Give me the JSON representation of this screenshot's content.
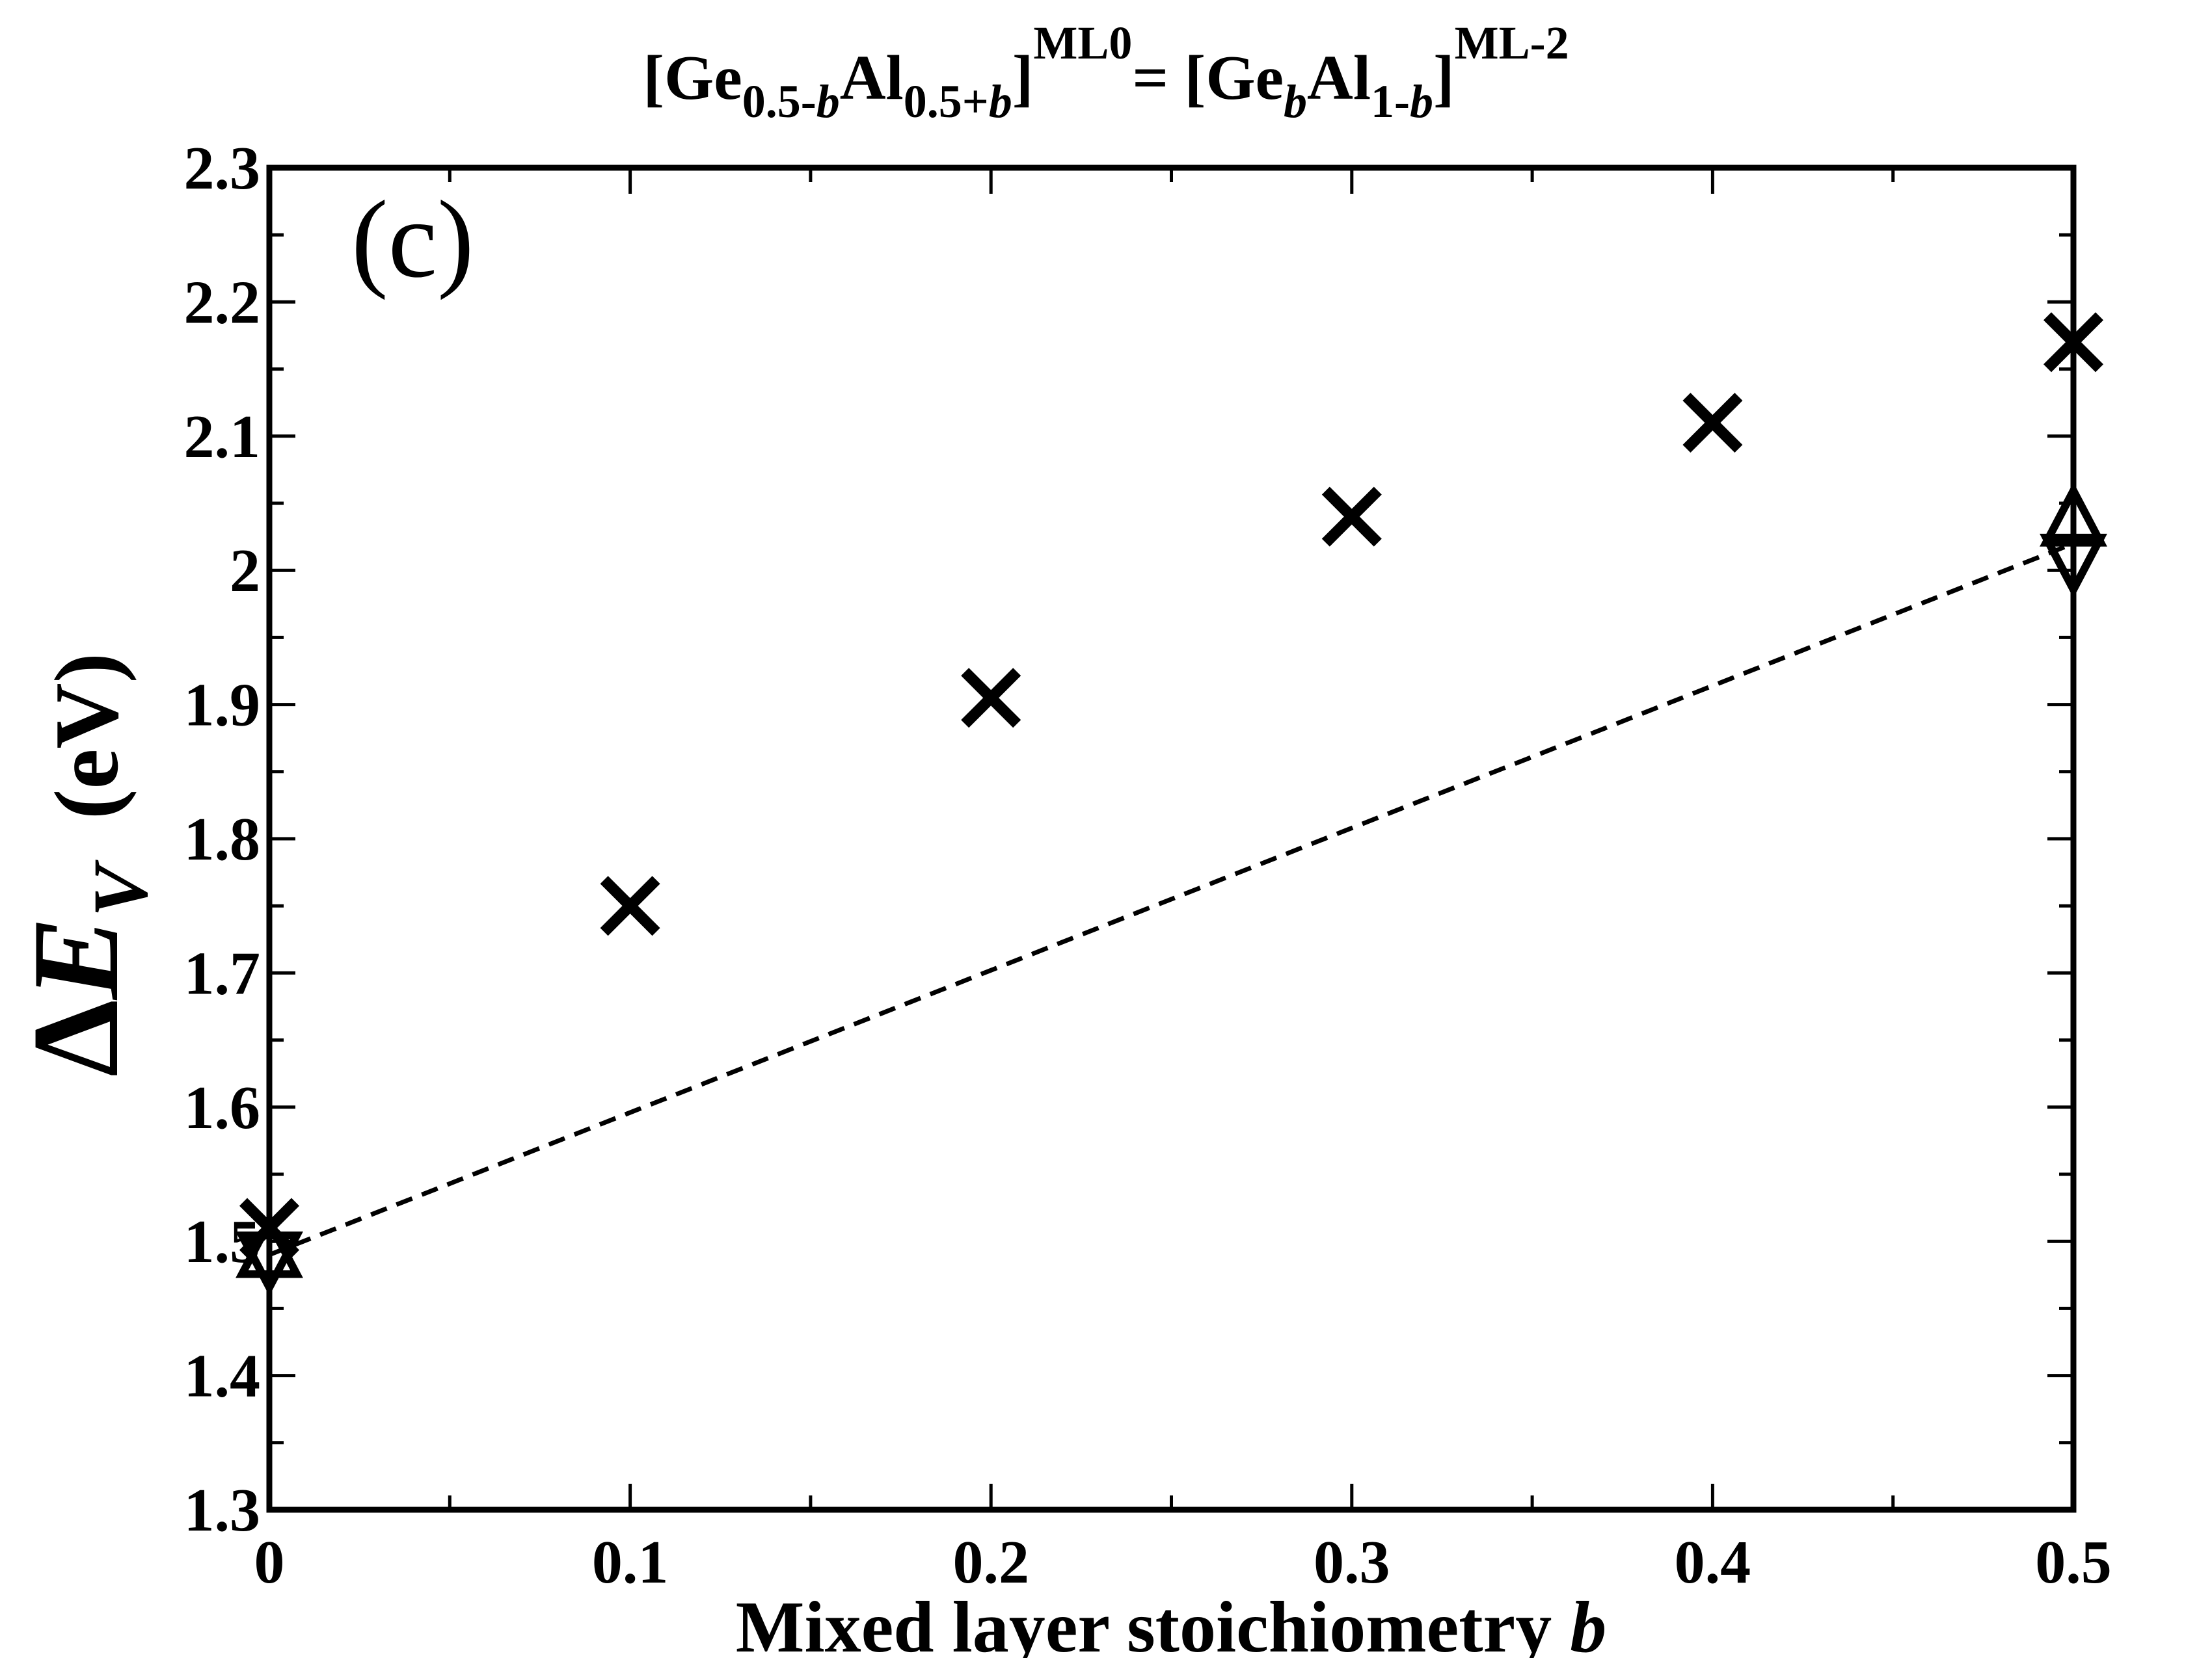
{
  "chart_data": {
    "type": "scatter",
    "title": {
      "parts": [
        {
          "text": "[Ge",
          "style": "normal"
        },
        {
          "text": "0.5-",
          "style": "sub"
        },
        {
          "text": "b",
          "style": "sub-italic"
        },
        {
          "text": "Al",
          "style": "normal"
        },
        {
          "text": "0.5+",
          "style": "sub"
        },
        {
          "text": "b",
          "style": "sub-italic"
        },
        {
          "text": "]",
          "style": "normal"
        },
        {
          "text": "ML0",
          "style": "sup"
        },
        {
          "text": "= [Ge",
          "style": "normal"
        },
        {
          "text": "b",
          "style": "sub-italic"
        },
        {
          "text": "Al",
          "style": "normal"
        },
        {
          "text": "1-",
          "style": "sub"
        },
        {
          "text": "b",
          "style": "sub-italic"
        },
        {
          "text": "]",
          "style": "normal"
        },
        {
          "text": "ML-2",
          "style": "sup"
        }
      ]
    },
    "panel_label": "(c)",
    "xlabel": {
      "text": "Mixed layer stoichiometry ",
      "var": "b"
    },
    "ylabel": {
      "delta": "Δ",
      "symbol": "E",
      "subscript": "V",
      "unit": "(eV)"
    },
    "xlim": [
      0,
      0.5
    ],
    "ylim": [
      1.3,
      2.3
    ],
    "x_ticks": [
      {
        "value": 0,
        "label": "0"
      },
      {
        "value": 0.1,
        "label": "0.1"
      },
      {
        "value": 0.2,
        "label": "0.2"
      },
      {
        "value": 0.3,
        "label": "0.3"
      },
      {
        "value": 0.4,
        "label": "0.4"
      },
      {
        "value": 0.5,
        "label": "0.5"
      }
    ],
    "x_minor_ticks": [
      0.05,
      0.15,
      0.25,
      0.35,
      0.45
    ],
    "y_ticks": [
      {
        "value": 1.3,
        "label": "1.3"
      },
      {
        "value": 1.4,
        "label": "1.4"
      },
      {
        "value": 1.5,
        "label": "1.5"
      },
      {
        "value": 1.6,
        "label": "1.6"
      },
      {
        "value": 1.7,
        "label": "1.7"
      },
      {
        "value": 1.8,
        "label": "1.8"
      },
      {
        "value": 1.9,
        "label": "1.9"
      },
      {
        "value": 2.0,
        "label": "2"
      },
      {
        "value": 2.1,
        "label": "2.1"
      },
      {
        "value": 2.2,
        "label": "2.2"
      },
      {
        "value": 2.3,
        "label": "2.3"
      }
    ],
    "y_minor_ticks": [
      1.35,
      1.45,
      1.55,
      1.65,
      1.75,
      1.85,
      1.95,
      2.05,
      2.15,
      2.25
    ],
    "grid": false,
    "series": [
      {
        "marker": "x",
        "points": [
          {
            "x": 0.0,
            "y": 1.51
          },
          {
            "x": 0.1,
            "y": 1.75
          },
          {
            "x": 0.2,
            "y": 1.905
          },
          {
            "x": 0.3,
            "y": 2.04
          },
          {
            "x": 0.4,
            "y": 2.11
          },
          {
            "x": 0.5,
            "y": 2.17
          }
        ]
      },
      {
        "marker": "triangle-up",
        "points": [
          {
            "x": 0.0,
            "y": 1.495
          },
          {
            "x": 0.5,
            "y": 2.04
          }
        ]
      },
      {
        "marker": "triangle-down",
        "points": [
          {
            "x": 0.0,
            "y": 1.485
          },
          {
            "x": 0.5,
            "y": 2.005
          }
        ]
      },
      {
        "marker": "dashed-line",
        "points": [
          {
            "x": 0.0,
            "y": 1.49
          },
          {
            "x": 0.5,
            "y": 2.02
          }
        ]
      }
    ],
    "colors": {
      "foreground": "#000000",
      "background": "#ffffff"
    }
  }
}
